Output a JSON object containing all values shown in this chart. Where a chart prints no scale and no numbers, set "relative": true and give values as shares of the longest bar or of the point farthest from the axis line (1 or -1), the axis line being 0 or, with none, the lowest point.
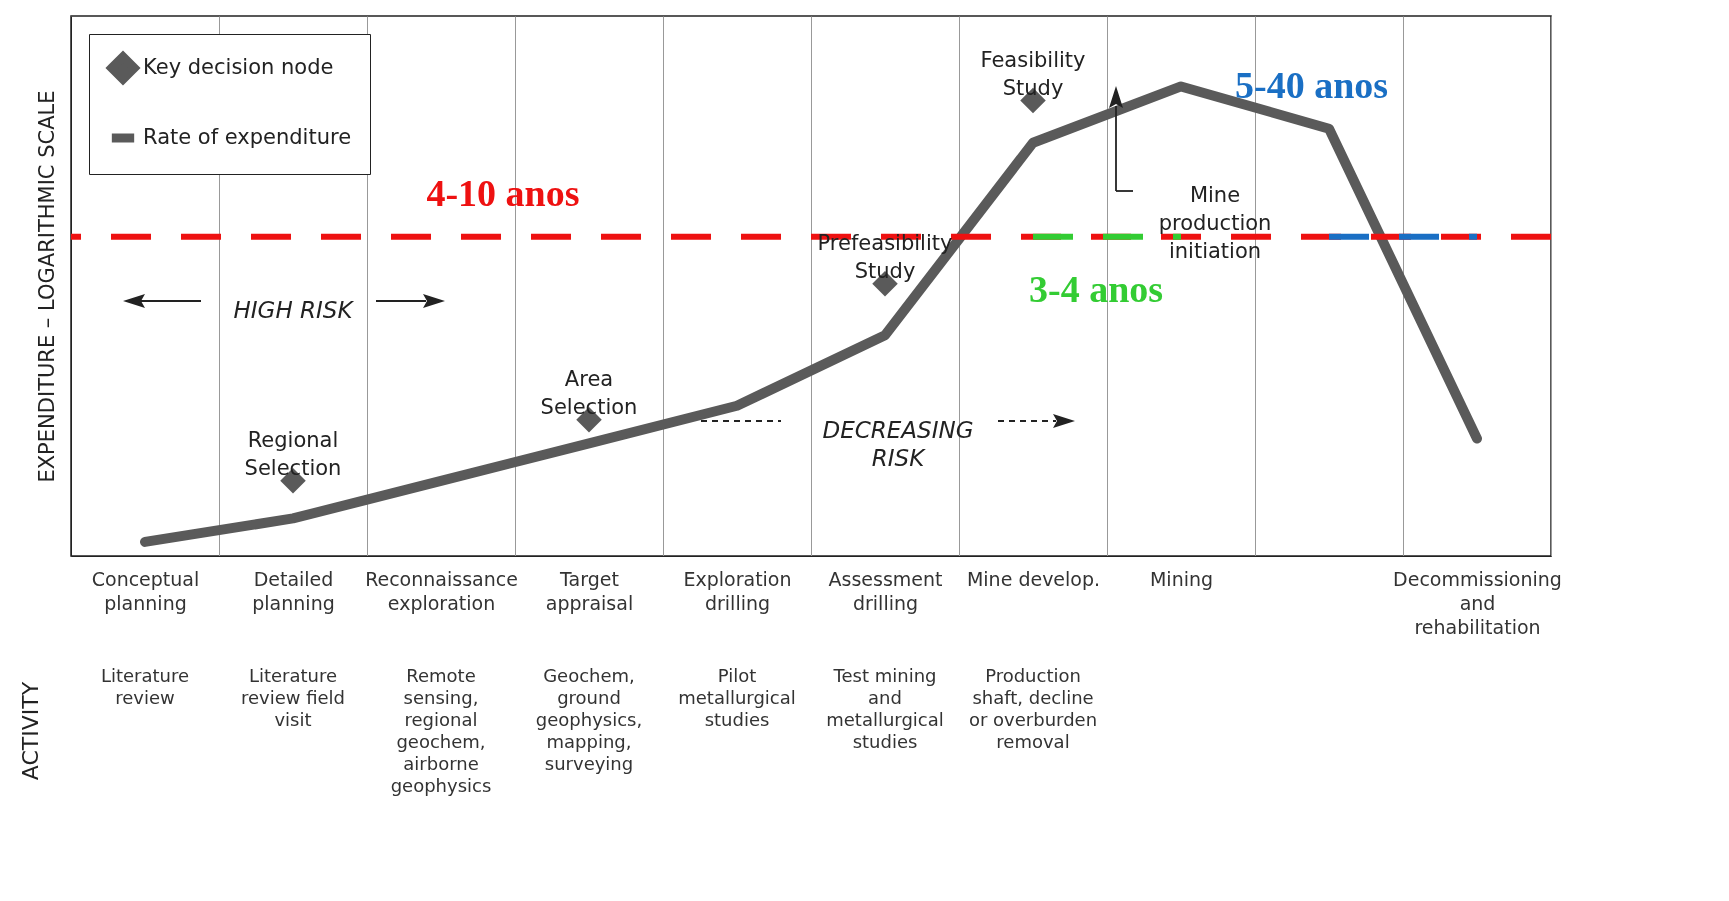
{
  "chart_data": {
    "type": "line",
    "relative": true,
    "ylabel": "EXPENDITURE – LOGARITHMIC SCALE",
    "categories": [
      "Conceptual planning",
      "Detailed planning",
      "Reconnaissance exploration",
      "Target appraisal",
      "Exploration drilling",
      "Assessment drilling",
      "Mine develop.",
      "Mining",
      null,
      "Decommissioning and rehabilitation"
    ],
    "series": [
      {
        "name": "Key decision node",
        "type": "scatter",
        "marker": "diamond",
        "color": "#5a5a5a",
        "x": [
          "Detailed planning",
          "Target appraisal",
          "Assessment drilling",
          "Mine develop."
        ],
        "values": [
          0.16,
          0.29,
          0.58,
          0.97
        ]
      },
      {
        "name": "Rate of expenditure",
        "type": "line",
        "color": "#5a5a5a",
        "values": [
          0.03,
          0.08,
          0.16,
          0.24,
          0.32,
          0.47,
          0.88,
          1,
          0.91,
          0.25
        ]
      },
      {
        "name": "3-4 anos",
        "type": "line",
        "line_style": "dashed",
        "color": "#33cc33",
        "values": [
          null,
          null,
          null,
          null,
          null,
          null,
          0.68,
          0.68,
          null,
          null
        ]
      },
      {
        "name": "5-40 anos",
        "type": "line",
        "line_style": "dashed",
        "color": "#1a6fc4",
        "values": [
          null,
          null,
          null,
          null,
          null,
          null,
          null,
          null,
          0.68,
          0.68
        ]
      }
    ],
    "ref_lines": [
      {
        "axis": "y",
        "value": 0.68,
        "label": "4-10 anos",
        "color": "#ee1111",
        "line_style": "dashed"
      }
    ],
    "annotations": [
      {
        "text": "Regional Selection",
        "x": "Detailed planning",
        "y": 0.16
      },
      {
        "text": "Area Selection",
        "x": "Target appraisal",
        "y": 0.29
      },
      {
        "text": "Prefeasibility Study",
        "x": "Assessment drilling",
        "y": 0.58
      },
      {
        "text": "Feasibility Study",
        "x": "Mine develop.",
        "y": 0.97
      },
      "Literature review",
      "Literature review field visit",
      "Remote sensing, regional geochem, airborne geophysics",
      "Geochem, ground geophysics, mapping, surveying",
      "Pilot metallurgical studies",
      "Test mining and metallurgical studies",
      "Production shaft, decline or overburden removal",
      "HIGH RISK",
      "DECREASING RISK",
      "Mine production initiation",
      "ACTIVITY"
    ],
    "grid": "x",
    "legend": "top left"
  }
}
